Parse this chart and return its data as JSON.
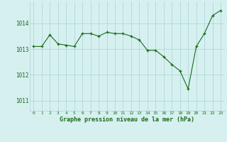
{
  "hours": [
    0,
    1,
    2,
    3,
    4,
    5,
    6,
    7,
    8,
    9,
    10,
    11,
    12,
    13,
    14,
    15,
    16,
    17,
    18,
    19,
    20,
    21,
    22,
    23
  ],
  "pressure": [
    1013.1,
    1013.1,
    1013.55,
    1013.2,
    1013.15,
    1013.1,
    1013.6,
    1013.6,
    1013.5,
    1013.65,
    1013.6,
    1013.6,
    1013.5,
    1013.35,
    1012.95,
    1012.95,
    1012.7,
    1012.4,
    1012.15,
    1011.45,
    1013.1,
    1013.6,
    1014.3,
    1014.5
  ],
  "line_color": "#1a6b1a",
  "marker_color": "#1a6b1a",
  "bg_color": "#d6f0f0",
  "grid_color": "#b0d8d8",
  "xlabel": "Graphe pression niveau de la mer (hPa)",
  "xlabel_color": "#1a6b1a",
  "tick_color": "#1a6b1a",
  "ylim": [
    1010.6,
    1014.85
  ],
  "yticks": [
    1011,
    1012,
    1013,
    1014
  ],
  "xlim": [
    -0.5,
    23.5
  ],
  "xticks": [
    0,
    1,
    2,
    3,
    4,
    5,
    6,
    7,
    8,
    9,
    10,
    11,
    12,
    13,
    14,
    15,
    16,
    17,
    18,
    19,
    20,
    21,
    22,
    23
  ]
}
